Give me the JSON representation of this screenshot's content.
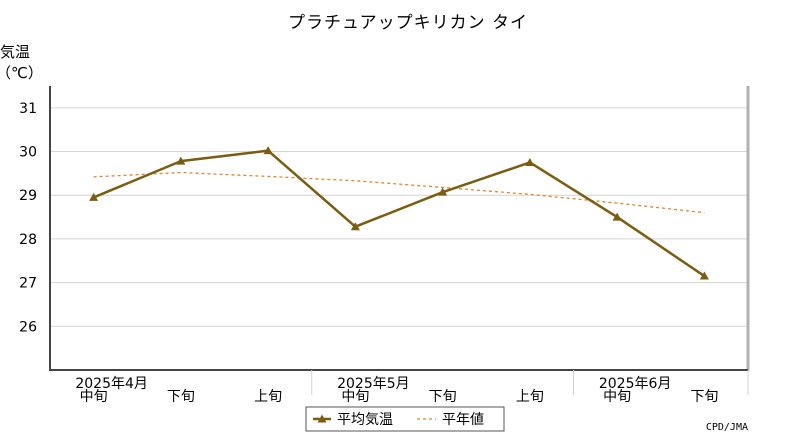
{
  "chart_data": {
    "type": "line",
    "title": "プラチュアップキリカン タイ",
    "ylabel_line1": "気温",
    "ylabel_line2": "（℃）",
    "ylim": [
      25,
      31.5
    ],
    "yticks": [
      26,
      27,
      28,
      29,
      30,
      31
    ],
    "grid": true,
    "categories": [
      "中旬",
      "下旬",
      "上旬",
      "中旬",
      "下旬",
      "上旬",
      "中旬",
      "下旬"
    ],
    "months": [
      {
        "label": "2025年4月",
        "index": 0
      },
      {
        "label": "2025年5月",
        "index": 3
      },
      {
        "label": "2025年6月",
        "index": 6
      }
    ],
    "series": [
      {
        "name": "平均気温",
        "style": "solid",
        "marker": "triangle",
        "color": "#7b5c10",
        "values": [
          28.95,
          29.78,
          30.02,
          28.28,
          29.07,
          29.75,
          28.5,
          27.15
        ]
      },
      {
        "name": "平年値",
        "style": "dashed",
        "marker": "none",
        "color": "#e8832a",
        "values": [
          29.42,
          29.52,
          29.43,
          29.33,
          29.18,
          29.02,
          28.82,
          28.6
        ]
      }
    ],
    "legend_position": "bottom-center",
    "source": "CPD/JMA"
  }
}
